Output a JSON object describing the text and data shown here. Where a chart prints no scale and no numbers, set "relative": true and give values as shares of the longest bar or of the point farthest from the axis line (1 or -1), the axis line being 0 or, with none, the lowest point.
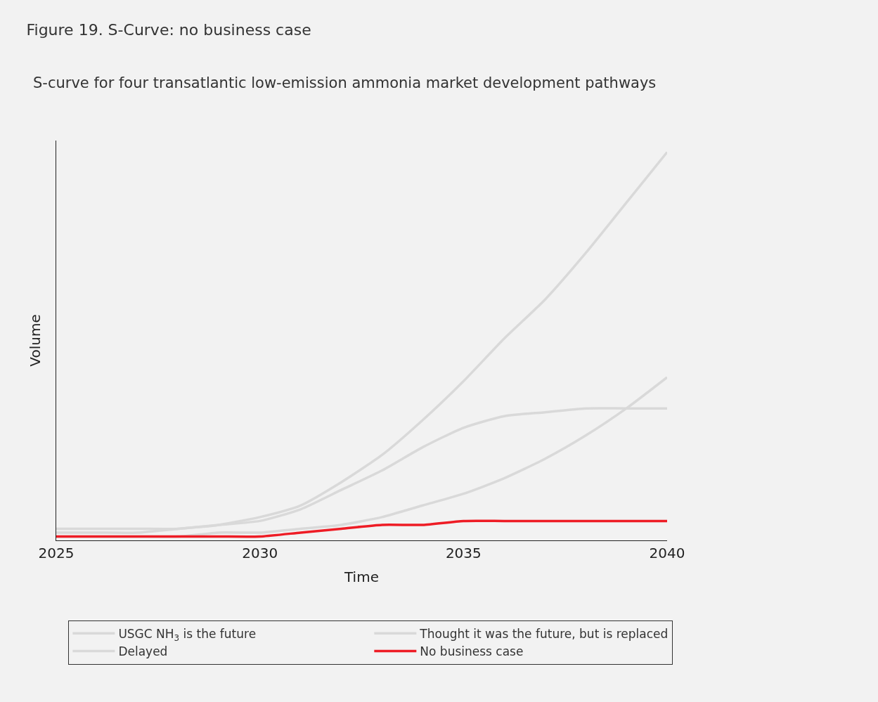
{
  "chart_data": {
    "type": "line",
    "title": "Figure 19. S-Curve: no business case",
    "subtitle": "S-curve for four transatlantic low-emission ammonia market development pathways",
    "xlabel": "Time",
    "ylabel": "Volume",
    "relative": true,
    "x": [
      2025,
      2026,
      2027,
      2028,
      2029,
      2030,
      2031,
      2032,
      2033,
      2034,
      2035,
      2036,
      2037,
      2038,
      2039,
      2040
    ],
    "xlim": [
      2025,
      2040
    ],
    "xticks": [
      2025,
      2030,
      2035,
      2040
    ],
    "series": [
      {
        "name": "USGC NH$_{3}$ is the future",
        "color": "#d9d9d9",
        "values": [
          0.03,
          0.03,
          0.03,
          0.03,
          0.04,
          0.06,
          0.09,
          0.15,
          0.22,
          0.31,
          0.41,
          0.52,
          0.62,
          0.74,
          0.87,
          1.0
        ]
      },
      {
        "name": "Thought it was the future, but is replaced",
        "color": "#d9d9d9",
        "values": [
          0.02,
          0.02,
          0.02,
          0.03,
          0.04,
          0.05,
          0.08,
          0.13,
          0.18,
          0.24,
          0.29,
          0.32,
          0.33,
          0.34,
          0.34,
          0.34
        ]
      },
      {
        "name": "Delayed",
        "color": "#d9d9d9",
        "values": [
          0.01,
          0.01,
          0.01,
          0.01,
          0.02,
          0.02,
          0.03,
          0.04,
          0.06,
          0.09,
          0.12,
          0.16,
          0.21,
          0.27,
          0.34,
          0.42
        ]
      },
      {
        "name": "No business case",
        "color": "#ee1c25",
        "values": [
          0.01,
          0.01,
          0.01,
          0.01,
          0.01,
          0.01,
          0.02,
          0.03,
          0.04,
          0.04,
          0.05,
          0.05,
          0.05,
          0.05,
          0.05,
          0.05
        ]
      }
    ],
    "grid": false,
    "legend": "bottom",
    "marker": "none",
    "line_style": "solid"
  }
}
